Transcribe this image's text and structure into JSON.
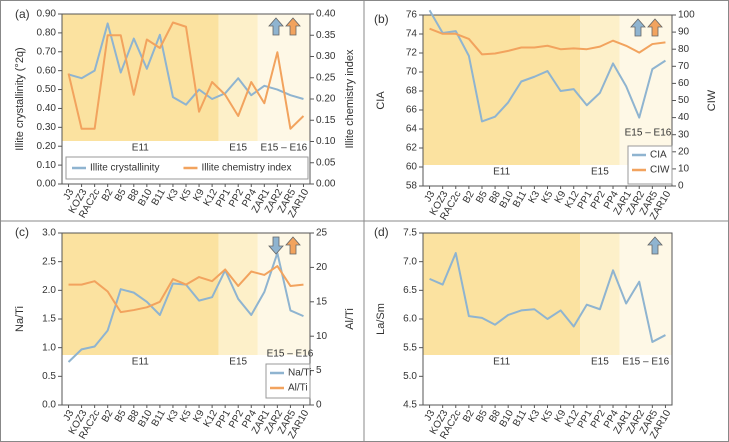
{
  "chart_data": [
    {
      "type": "line",
      "panel_label": "(a)",
      "ylabel": "Illite crystallinity (°2q)",
      "y2label": "Illite chemistry index",
      "categories": [
        "J3",
        "KOZ3",
        "RAC2c",
        "B2",
        "B5",
        "B8",
        "B10",
        "B11",
        "K3",
        "K5",
        "K9",
        "K12",
        "PP1",
        "PP2",
        "PP4",
        "ZAR1",
        "ZAR2",
        "ZAR5",
        "ZAR10"
      ],
      "series": [
        {
          "name": "Illite crystallinity",
          "color": "#8fb4d0",
          "values": [
            0.58,
            0.56,
            0.6,
            0.85,
            0.59,
            0.77,
            0.61,
            0.79,
            0.46,
            0.42,
            0.5,
            0.45,
            0.48,
            0.56,
            0.47,
            0.52,
            0.5,
            0.47,
            0.45
          ]
        },
        {
          "name": "Illite chemistry index",
          "color": "#f2a35e",
          "axis": "y2",
          "values": [
            0.26,
            0.13,
            0.13,
            0.35,
            0.35,
            0.21,
            0.34,
            0.32,
            0.38,
            0.37,
            0.17,
            0.24,
            0.21,
            0.16,
            0.24,
            0.19,
            0.31,
            0.13,
            0.16
          ]
        }
      ],
      "ylim": [
        0,
        0.9
      ],
      "yticks": [
        {
          "value": 0,
          "label": "0.00"
        },
        {
          "value": 0.1,
          "label": "0.10"
        },
        {
          "value": 0.2,
          "label": "0.20"
        },
        {
          "value": 0.3,
          "label": "0.30"
        },
        {
          "value": 0.4,
          "label": "0.40"
        },
        {
          "value": 0.5,
          "label": "0.50"
        },
        {
          "value": 0.6,
          "label": "0.60"
        },
        {
          "value": 0.7,
          "label": "0.70"
        },
        {
          "value": 0.8,
          "label": "0.80"
        },
        {
          "value": 0.9,
          "label": "0.90"
        }
      ],
      "y2lim": [
        0,
        0.4
      ],
      "y2ticks": [
        {
          "value": 0,
          "label": "0.00"
        },
        {
          "value": 0.05,
          "label": "0.05"
        },
        {
          "value": 0.1,
          "label": "0.10"
        },
        {
          "value": 0.15,
          "label": "0.15"
        },
        {
          "value": 0.2,
          "label": "0.20"
        },
        {
          "value": 0.25,
          "label": "0.25"
        },
        {
          "value": 0.3,
          "label": "0.30"
        },
        {
          "value": 0.35,
          "label": "0.35"
        },
        {
          "value": 0.4,
          "label": "0.40"
        }
      ],
      "legend": "lower left",
      "zones": [
        {
          "label": "E11",
          "start": "J3",
          "end": "K12",
          "color": "#fbe2a0"
        },
        {
          "label": "E15",
          "start": "PP1",
          "end": "PP4",
          "color": "#fdf0c9"
        },
        {
          "label": "E15 – E16",
          "start": "ZAR1",
          "end": "ZAR10",
          "color": "#fef8e6"
        }
      ]
    },
    {
      "type": "line",
      "panel_label": "(b)",
      "ylabel": "CIA",
      "y2label": "CIW",
      "categories": [
        "J3",
        "KOZ3",
        "RAC2c",
        "B2",
        "B5",
        "B8",
        "B10",
        "B11",
        "K3",
        "K5",
        "K9",
        "K12",
        "PP1",
        "PP2",
        "PP4",
        "ZAR1",
        "ZAR2",
        "ZAR5",
        "ZAR10"
      ],
      "series": [
        {
          "name": "CIA",
          "color": "#8fb4d0",
          "values": [
            76.5,
            74.1,
            74.3,
            71.7,
            64.8,
            65.3,
            66.8,
            69.0,
            69.5,
            70.1,
            68.0,
            68.2,
            66.5,
            67.8,
            70.9,
            68.5,
            65.2,
            70.3,
            71.2
          ]
        },
        {
          "name": "CIW",
          "color": "#f2a35e",
          "axis": "y2",
          "values": [
            92,
            89,
            89,
            86,
            77,
            77.5,
            79,
            81,
            81,
            82,
            80,
            80.5,
            80,
            81.5,
            85,
            82,
            78,
            83,
            84
          ]
        }
      ],
      "ylim": [
        58,
        76
      ],
      "yticks": [
        58,
        60,
        62,
        64,
        66,
        68,
        70,
        72,
        74,
        76
      ],
      "y2lim": [
        0,
        100
      ],
      "y2ticks": [
        0,
        10,
        20,
        30,
        40,
        50,
        60,
        70,
        80,
        90,
        100
      ],
      "legend": "lower right",
      "zones": [
        {
          "label": "E11",
          "start": "J3",
          "end": "K12",
          "color": "#fbe2a0"
        },
        {
          "label": "E15",
          "start": "PP1",
          "end": "PP4",
          "color": "#fdf0c9"
        },
        {
          "label": "E15 – E16",
          "start": "ZAR1",
          "end": "ZAR10",
          "color": "#fef8e6"
        }
      ]
    },
    {
      "type": "line",
      "panel_label": "(c)",
      "ylabel": "Na/Ti",
      "y2label": "Al/Ti",
      "categories": [
        "J3",
        "KOZ3",
        "RAC2c",
        "B2",
        "B5",
        "B8",
        "B10",
        "B11",
        "K3",
        "K5",
        "K9",
        "K12",
        "PP1",
        "PP2",
        "PP4",
        "ZAR1",
        "ZAR2",
        "ZAR5",
        "ZAR10"
      ],
      "series": [
        {
          "name": "Na/Ti",
          "color": "#8fb4d0",
          "values": [
            0.75,
            0.97,
            1.02,
            1.3,
            2.02,
            1.96,
            1.8,
            1.57,
            2.12,
            2.1,
            1.82,
            1.88,
            2.35,
            1.85,
            1.57,
            1.97,
            2.65,
            1.65,
            1.55
          ]
        },
        {
          "name": "Al/Ti",
          "color": "#f2a35e",
          "axis": "y2",
          "values": [
            17.5,
            17.5,
            18,
            16.5,
            13.5,
            13.8,
            14.2,
            15,
            18.3,
            17.5,
            18.6,
            18,
            19.7,
            17.3,
            19.4,
            18.9,
            20.2,
            17.3,
            17.5
          ]
        }
      ],
      "ylim": [
        0,
        3
      ],
      "yticks": [
        {
          "value": 0,
          "label": "0.0"
        },
        0.5,
        {
          "value": 1,
          "label": "1.0"
        },
        1.5,
        {
          "value": 2,
          "label": "2.0"
        },
        2.5,
        {
          "value": 3,
          "label": "3.0"
        }
      ],
      "y2lim": [
        0,
        25
      ],
      "y2ticks": [
        0,
        5,
        10,
        15,
        20,
        25
      ],
      "legend": "right",
      "zones": [
        {
          "label": "E11",
          "start": "J3",
          "end": "K12",
          "color": "#fbe2a0"
        },
        {
          "label": "E15",
          "start": "PP1",
          "end": "PP4",
          "color": "#fdf0c9"
        },
        {
          "label": "E15 – E16",
          "start": "ZAR1",
          "end": "ZAR10",
          "color": "#fef8e6"
        }
      ]
    },
    {
      "type": "line",
      "panel_label": "(d)",
      "ylabel": "La/Sm",
      "categories": [
        "J3",
        "KOZ3",
        "RAC2c",
        "B2",
        "B5",
        "B8",
        "B10",
        "B11",
        "K3",
        "K5",
        "K9",
        "K12",
        "PP1",
        "PP2",
        "PP4",
        "ZAR1",
        "ZAR2",
        "ZAR5",
        "ZAR10"
      ],
      "values": [
        6.7,
        6.6,
        7.15,
        6.05,
        6.02,
        5.9,
        6.07,
        6.15,
        6.17,
        6.0,
        6.15,
        5.87,
        6.25,
        6.17,
        6.85,
        6.27,
        6.65,
        5.6,
        5.72
      ],
      "color": "#8fb4d0",
      "ylim": [
        4.5,
        7.5
      ],
      "yticks": [
        4.5,
        {
          "value": 5,
          "label": "5.0"
        },
        5.5,
        {
          "value": 6,
          "label": "6.0"
        },
        6.5,
        {
          "value": 7,
          "label": "7.0"
        },
        7.5
      ],
      "zones": [
        {
          "label": "E11",
          "start": "J3",
          "end": "K12",
          "color": "#fbe2a0"
        },
        {
          "label": "E15",
          "start": "PP1",
          "end": "PP4",
          "color": "#fdf0c9"
        },
        {
          "label": "E15 – E16",
          "start": "ZAR1",
          "end": "ZAR10",
          "color": "#fef8e6"
        }
      ]
    }
  ]
}
